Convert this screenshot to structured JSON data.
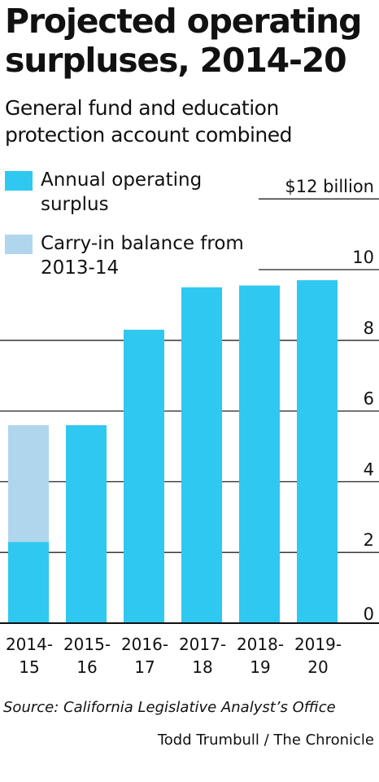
{
  "title": "Projected operating surpluses, 2014-20",
  "subtitle": "General fund and education protection account combined",
  "legend": [
    {
      "label": "Annual operating surplus",
      "color": "#2fc8f0"
    },
    {
      "label": "Carry-in balance from 2013-14",
      "color": "#b0d6ee"
    }
  ],
  "chart_data": {
    "type": "bar",
    "stacked": true,
    "categories": [
      [
        "2014-",
        "15"
      ],
      [
        "2015-",
        "16"
      ],
      [
        "2016-",
        "17"
      ],
      [
        "2017-",
        "18"
      ],
      [
        "2018-",
        "19"
      ],
      [
        "2019-",
        "20"
      ]
    ],
    "series": [
      {
        "name": "Annual operating surplus",
        "color": "#2fc8f0",
        "values": [
          2.3,
          5.6,
          8.3,
          9.5,
          9.55,
          9.7
        ]
      },
      {
        "name": "Carry-in balance from 2013-14",
        "color": "#b0d6ee",
        "values": [
          3.3,
          0,
          0,
          0,
          0,
          0
        ]
      }
    ],
    "yticks": [
      0,
      2,
      4,
      6,
      8,
      10,
      12
    ],
    "ytick_labels": [
      "0",
      "2",
      "4",
      "6",
      "8",
      "10",
      "$12 billion"
    ],
    "ylim": [
      0,
      12
    ],
    "grid": true,
    "legend_position": "top-left"
  },
  "source": "Source: California Legislative Analyst’s Office",
  "credit": "Todd Trumbull / The Chronicle"
}
